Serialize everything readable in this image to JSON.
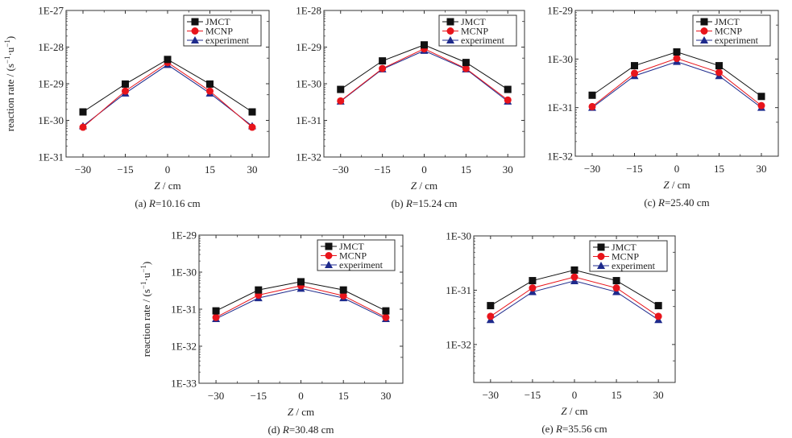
{
  "figure": {
    "ylabel": "reaction rate / (s",
    "ylabel_sup1": "−1",
    "ylabel_mid": "·u",
    "ylabel_sup2": "−1",
    "ylabel_end": ")",
    "xlabel_italic": "Z",
    "xlabel_rest": " / cm",
    "legend": [
      "JMCT",
      "MCNP",
      "experiment"
    ],
    "colors": {
      "JMCT": "#111111",
      "MCNP": "#e8141b",
      "experiment": "#1e2a8c",
      "axis": "#333333"
    }
  },
  "chart_data": [
    {
      "id": "a",
      "type": "line",
      "caption_prefix": "(a) ",
      "caption_var": "R",
      "caption_value": "=10.16 cm",
      "x": [
        -30,
        -15,
        0,
        15,
        30
      ],
      "xticks": [
        "−30",
        "−15",
        "0",
        "15",
        "30"
      ],
      "xlim": [
        -36,
        36
      ],
      "yscale": "log",
      "ylim": [
        1e-31,
        1e-27
      ],
      "yticks": [
        "1E-31",
        "1E-30",
        "1E-29",
        "1E-28",
        "1E-27"
      ],
      "ytick_values": [
        1e-31,
        1e-30,
        1e-29,
        1e-28,
        1e-27
      ],
      "show_ylabel": true,
      "legend_position": "top-right",
      "series": [
        {
          "name": "JMCT",
          "marker": "square",
          "values": [
            1.7e-30,
            9.8e-30,
            4.6e-29,
            9.8e-30,
            1.7e-30
          ]
        },
        {
          "name": "MCNP",
          "marker": "circle",
          "values": [
            6.5e-31,
            6.3e-30,
            3.8e-29,
            6.3e-30,
            6.5e-31
          ]
        },
        {
          "name": "experiment",
          "marker": "triangle",
          "values": [
            7e-31,
            5.5e-30,
            3.3e-29,
            5.5e-30,
            7e-31
          ]
        }
      ]
    },
    {
      "id": "b",
      "type": "line",
      "caption_prefix": "(b) ",
      "caption_var": "R",
      "caption_value": "=15.24 cm",
      "x": [
        -30,
        -15,
        0,
        15,
        30
      ],
      "xticks": [
        "−30",
        "−15",
        "0",
        "15",
        "30"
      ],
      "xlim": [
        -36,
        36
      ],
      "yscale": "log",
      "ylim": [
        1e-32,
        1e-28
      ],
      "yticks": [
        "1E-32",
        "1E-31",
        "1E-30",
        "1E-29",
        "1E-28"
      ],
      "ytick_values": [
        1e-32,
        1e-31,
        1e-30,
        1e-29,
        1e-28
      ],
      "show_ylabel": false,
      "legend_position": "top-right",
      "series": [
        {
          "name": "JMCT",
          "marker": "square",
          "values": [
            7e-31,
            4.2e-30,
            1.15e-29,
            3.8e-30,
            7e-31
          ]
        },
        {
          "name": "MCNP",
          "marker": "circle",
          "values": [
            3.4e-31,
            2.6e-30,
            9e-30,
            2.6e-30,
            3.6e-31
          ]
        },
        {
          "name": "experiment",
          "marker": "triangle",
          "values": [
            3.3e-31,
            2.5e-30,
            8e-30,
            2.5e-30,
            3.3e-31
          ]
        }
      ]
    },
    {
      "id": "c",
      "type": "line",
      "caption_prefix": "(c) ",
      "caption_var": "R",
      "caption_value": "=25.40 cm",
      "x": [
        -30,
        -15,
        0,
        15,
        30
      ],
      "xticks": [
        "−30",
        "−15",
        "0",
        "15",
        "30"
      ],
      "xlim": [
        -36,
        36
      ],
      "yscale": "log",
      "ylim": [
        1e-32,
        1e-29
      ],
      "yticks": [
        "1E-32",
        "1E-31",
        "1E-30",
        "1E-29"
      ],
      "ytick_values": [
        1e-32,
        1e-31,
        1e-30,
        1e-29
      ],
      "show_ylabel": false,
      "legend_position": "top-right",
      "series": [
        {
          "name": "JMCT",
          "marker": "square",
          "values": [
            1.8e-31,
            7.3e-31,
            1.4e-30,
            7.3e-31,
            1.7e-31
          ]
        },
        {
          "name": "MCNP",
          "marker": "circle",
          "values": [
            1.05e-31,
            5.1e-31,
            1.03e-30,
            5.3e-31,
            1.1e-31
          ]
        },
        {
          "name": "experiment",
          "marker": "triangle",
          "values": [
            1e-31,
            4.5e-31,
            8.8e-31,
            4.5e-31,
            1e-31
          ]
        }
      ]
    },
    {
      "id": "d",
      "type": "line",
      "caption_prefix": "(d) ",
      "caption_var": "R",
      "caption_value": "=30.48 cm",
      "x": [
        -30,
        -15,
        0,
        15,
        30
      ],
      "xticks": [
        "−30",
        "−15",
        "0",
        "15",
        "30"
      ],
      "xlim": [
        -36,
        36
      ],
      "yscale": "log",
      "ylim": [
        1e-33,
        1e-29
      ],
      "yticks": [
        "1E-33",
        "1E-32",
        "1E-31",
        "1E-30",
        "1E-29"
      ],
      "ytick_values": [
        1e-33,
        1e-32,
        1e-31,
        1e-30,
        1e-29
      ],
      "show_ylabel": true,
      "legend_position": "top-right",
      "series": [
        {
          "name": "JMCT",
          "marker": "square",
          "values": [
            9e-32,
            3.3e-31,
            5.5e-31,
            3.3e-31,
            9e-32
          ]
        },
        {
          "name": "MCNP",
          "marker": "circle",
          "values": [
            6e-32,
            2.4e-31,
            4.3e-31,
            2.3e-31,
            6e-32
          ]
        },
        {
          "name": "experiment",
          "marker": "triangle",
          "values": [
            5.5e-32,
            2e-31,
            3.6e-31,
            2e-31,
            5.5e-32
          ]
        }
      ]
    },
    {
      "id": "e",
      "type": "line",
      "caption_prefix": "(e) ",
      "caption_var": "R",
      "caption_value": "=35.56 cm",
      "x": [
        -30,
        -15,
        0,
        15,
        30
      ],
      "xticks": [
        "−30",
        "−15",
        "0",
        "15",
        "30"
      ],
      "xlim": [
        -36,
        36
      ],
      "yscale": "log",
      "ylim": [
        2e-33,
        1e-30
      ],
      "yticks": [
        "1E-32",
        "1E-31",
        "1E-30"
      ],
      "ytick_values": [
        1e-32,
        1e-31,
        1e-30
      ],
      "show_ylabel": false,
      "legend_position": "top-right",
      "series": [
        {
          "name": "JMCT",
          "marker": "square",
          "values": [
            5.2e-32,
            1.5e-31,
            2.35e-31,
            1.5e-31,
            5.2e-32
          ]
        },
        {
          "name": "MCNP",
          "marker": "circle",
          "values": [
            3.3e-32,
            1.1e-31,
            1.75e-31,
            1.1e-31,
            3.3e-32
          ]
        },
        {
          "name": "experiment",
          "marker": "triangle",
          "values": [
            2.85e-32,
            9.3e-32,
            1.48e-31,
            9.3e-32,
            2.85e-32
          ]
        }
      ]
    }
  ]
}
